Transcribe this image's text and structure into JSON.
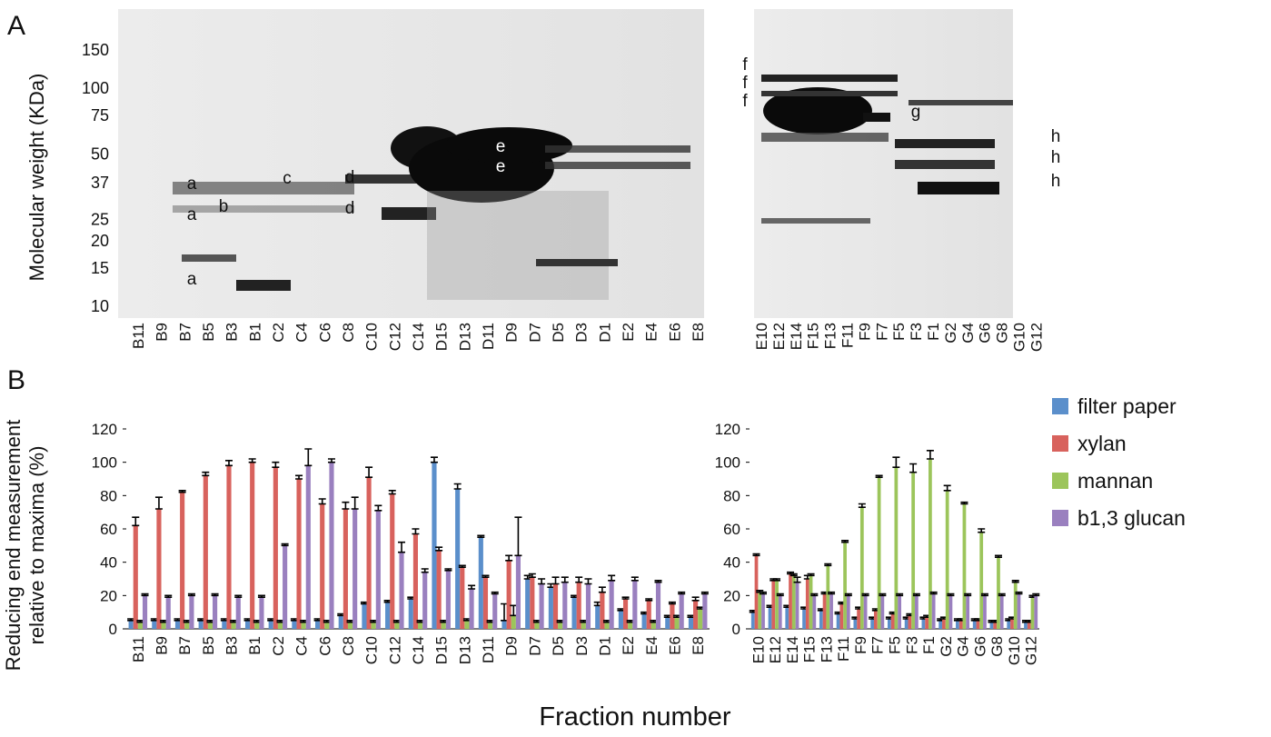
{
  "panel_labels": [
    "A",
    "B"
  ],
  "gel": {
    "ylabel": "Molecular weight (KDa)",
    "log_scale": true,
    "ylim": [
      10,
      150
    ],
    "mw_markers": [
      150,
      100,
      75,
      50,
      37,
      25,
      20,
      15,
      10
    ],
    "lanes": [
      [
        "B11",
        "B9",
        "B7",
        "B5",
        "B3",
        "B1",
        "C2",
        "C4",
        "C6",
        "C8",
        "C10",
        "C12",
        "C14",
        "D15",
        "D13",
        "D11",
        "D9",
        "D7",
        "D5",
        "D3",
        "D1",
        "E2",
        "E4",
        "E6",
        "E8"
      ],
      [
        "E10",
        "E12",
        "E14",
        "F15",
        "F13",
        "F11",
        "F9",
        "F7",
        "F5",
        "F3",
        "F1",
        "G2",
        "G4",
        "G6",
        "G8",
        "G10",
        "G12"
      ]
    ],
    "band_labels": [
      "a",
      "a",
      "b",
      "c",
      "d",
      "d",
      "e",
      "e",
      "f",
      "f",
      "f",
      "g",
      "h",
      "h",
      "h",
      "a"
    ]
  },
  "chart_data": [
    {
      "type": "bar",
      "ylabel": [
        "Reducing end measurement",
        "relative to maxima (%)"
      ],
      "xlabel": "Fraction number",
      "ylim": [
        0,
        120
      ],
      "yticks": [
        0,
        20,
        40,
        60,
        80,
        100,
        120
      ],
      "categories": [
        "B11",
        "B9",
        "B7",
        "B5",
        "B3",
        "B1",
        "C2",
        "C4",
        "C6",
        "C8",
        "C10",
        "C12",
        "C14",
        "D15",
        "D13",
        "D11",
        "D9",
        "D7",
        "D5",
        "D3",
        "D1",
        "E2",
        "E4",
        "E6",
        "E8"
      ],
      "series": [
        {
          "name": "filter paper",
          "color": "#5b8fcb",
          "values": [
            5,
            5,
            5,
            5,
            5,
            5,
            5,
            5,
            5,
            8,
            15,
            16,
            18,
            100,
            84,
            55,
            5,
            30,
            25,
            19,
            14,
            11,
            9,
            7,
            7
          ],
          "errors": [
            1,
            1,
            1,
            1,
            1,
            1,
            1,
            1,
            1,
            1,
            1,
            1,
            1,
            3,
            3,
            1,
            10,
            2,
            2,
            1,
            2,
            1,
            1,
            1,
            1
          ]
        },
        {
          "name": "xylan",
          "color": "#d8625d",
          "values": [
            62,
            72,
            82,
            92,
            98,
            100,
            97,
            90,
            75,
            72,
            91,
            81,
            57,
            47,
            37,
            31,
            41,
            31,
            27,
            28,
            22,
            18,
            17,
            15,
            17
          ],
          "errors": [
            5,
            7,
            1,
            2,
            3,
            2,
            3,
            2,
            3,
            4,
            6,
            2,
            3,
            2,
            1,
            1,
            3,
            2,
            4,
            3,
            3,
            1,
            1,
            1,
            2
          ]
        },
        {
          "name": "mannan",
          "color": "#9cc55b",
          "values": [
            4,
            4,
            4,
            4,
            4,
            4,
            4,
            4,
            4,
            4,
            4,
            4,
            4,
            4,
            5,
            4,
            8,
            4,
            4,
            4,
            4,
            4,
            4,
            7,
            12
          ],
          "errors": [
            1,
            1,
            1,
            1,
            1,
            1,
            1,
            1,
            1,
            1,
            1,
            1,
            1,
            1,
            1,
            1,
            6,
            1,
            1,
            1,
            1,
            1,
            1,
            1,
            1
          ]
        },
        {
          "name": "b1,3 glucan",
          "color": "#9a80bf",
          "values": [
            20,
            19,
            20,
            20,
            19,
            19,
            50,
            98,
            100,
            72,
            71,
            46,
            34,
            35,
            24,
            21,
            44,
            27,
            28,
            27,
            29,
            29,
            28,
            21,
            21
          ],
          "errors": [
            1,
            1,
            1,
            1,
            1,
            1,
            1,
            10,
            2,
            7,
            3,
            6,
            2,
            1,
            2,
            1,
            23,
            3,
            3,
            3,
            3,
            2,
            1,
            1,
            1
          ]
        }
      ]
    },
    {
      "type": "bar",
      "ylim": [
        0,
        120
      ],
      "yticks": [
        0,
        20,
        40,
        60,
        80,
        100,
        120
      ],
      "categories": [
        "E10",
        "E12",
        "E14",
        "F15",
        "F13",
        "F11",
        "F9",
        "F7",
        "F5",
        "F3",
        "F1",
        "G2",
        "G4",
        "G6",
        "G8",
        "G10",
        "G12"
      ],
      "series": [
        {
          "color": "#5b8fcb",
          "values": [
            10,
            13,
            13,
            12,
            11,
            9,
            6,
            6,
            6,
            6,
            6,
            5,
            5,
            5,
            4,
            5,
            4
          ],
          "errors": [
            1,
            1,
            1,
            1,
            1,
            1,
            1,
            1,
            1,
            1,
            1,
            1,
            1,
            1,
            1,
            1,
            1
          ]
        },
        {
          "color": "#d8625d",
          "values": [
            44,
            29,
            33,
            30,
            21,
            15,
            12,
            11,
            9,
            8,
            7,
            6,
            5,
            5,
            4,
            6,
            4
          ],
          "errors": [
            1,
            1,
            1,
            2,
            1,
            1,
            1,
            1,
            1,
            1,
            1,
            1,
            1,
            1,
            1,
            1,
            1
          ]
        },
        {
          "color": "#9cc55b",
          "values": [
            22,
            29,
            32,
            32,
            38,
            52,
            73,
            91,
            97,
            94,
            102,
            83,
            75,
            58,
            43,
            28,
            19
          ],
          "errors": [
            1,
            1,
            1,
            1,
            1,
            1,
            2,
            1,
            6,
            5,
            5,
            3,
            1,
            2,
            1,
            1,
            1
          ]
        },
        {
          "color": "#9a80bf",
          "values": [
            21,
            20,
            28,
            20,
            21,
            20,
            20,
            20,
            20,
            20,
            21,
            20,
            20,
            20,
            20,
            21,
            20
          ],
          "errors": [
            1,
            1,
            3,
            1,
            1,
            1,
            1,
            1,
            1,
            1,
            1,
            1,
            1,
            1,
            1,
            1,
            1
          ]
        }
      ]
    }
  ]
}
